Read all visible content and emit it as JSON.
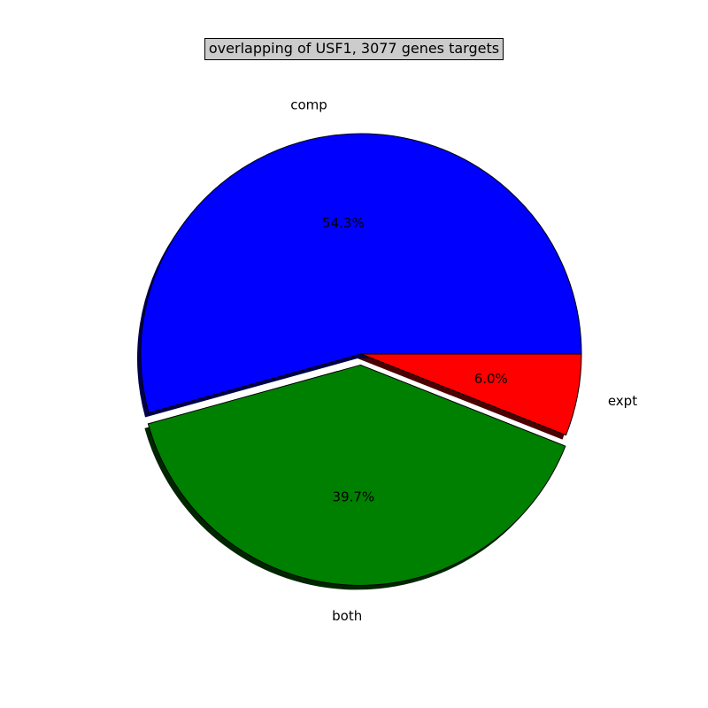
{
  "chart_data": {
    "type": "pie",
    "title": "overlapping of  USF1, 3077 genes targets",
    "slices": [
      {
        "label": "comp",
        "value": 54.3,
        "pct_label": "54.3%",
        "color": "#0000ff"
      },
      {
        "label": "both",
        "value": 39.7,
        "pct_label": "39.7%",
        "color": "#008000",
        "exploded": true
      },
      {
        "label": "expt",
        "value": 6.0,
        "pct_label": "6.0%",
        "color": "#ff0000"
      }
    ],
    "shadow": true,
    "start_angle_deg": 0,
    "direction": "counterclockwise"
  }
}
